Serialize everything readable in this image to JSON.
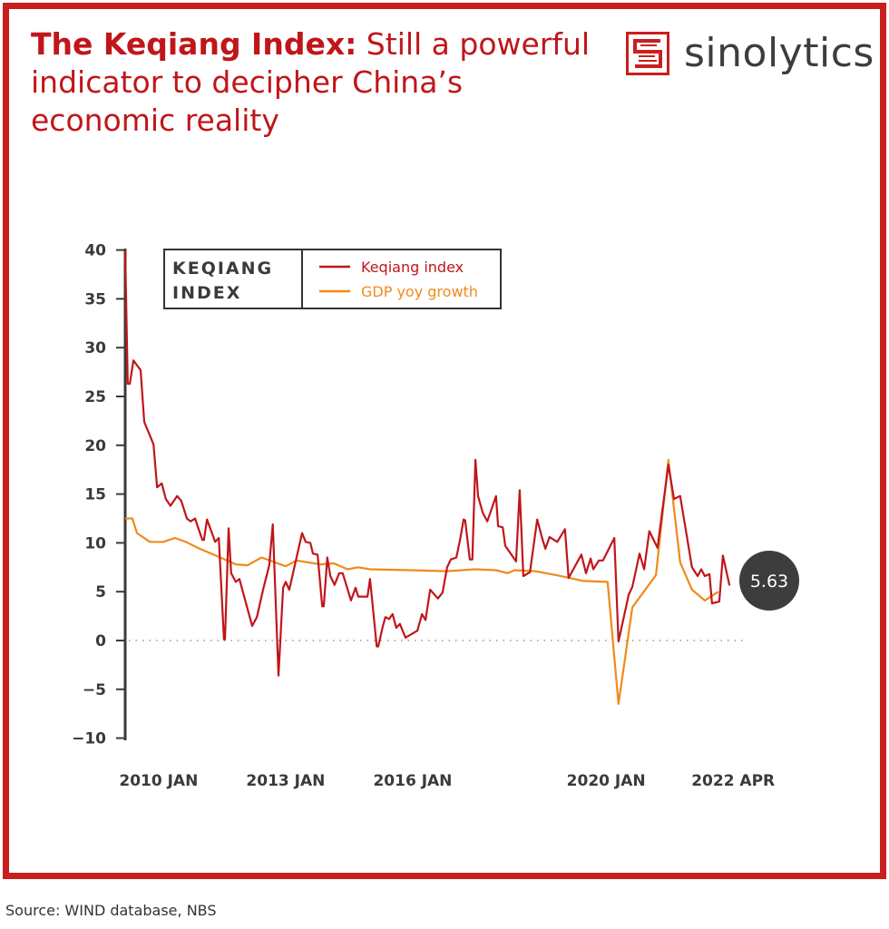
{
  "header": {
    "title_bold": "The Keqiang Index:",
    "title_rest": " Still a powerful indicator to decipher China’s economic reality",
    "brand": "sinolytics"
  },
  "footer": {
    "source": "Source: WIND database, NBS"
  },
  "colors": {
    "frame": "#c8201e",
    "keqiang": "#c0161a",
    "gdp": "#f08a1c",
    "axis": "#3a3a3a",
    "bubble": "#3d3d3d"
  },
  "chart_data": {
    "type": "line",
    "title": "KEQIANG INDEX",
    "title_line1": "KEQIANG",
    "title_line2": "INDEX",
    "xlabel": "",
    "ylabel": "",
    "ylim": [
      -10,
      40
    ],
    "xlim": [
      2010.0,
      2022.25
    ],
    "yticks": [
      40,
      35,
      30,
      25,
      20,
      15,
      10,
      5,
      0,
      -5,
      -10
    ],
    "ytick_labels": [
      "40",
      "35",
      "30",
      "25",
      "20",
      "15",
      "10",
      "5",
      "0",
      "−5",
      "−10"
    ],
    "xticks": [
      {
        "label": "2010 JAN",
        "x": 2010.65
      },
      {
        "label": "2013 JAN",
        "x": 2013.12
      },
      {
        "label": "2016 JAN",
        "x": 2015.59
      },
      {
        "label": "2020 JAN",
        "x": 2019.35
      },
      {
        "label": "2022 APR",
        "x": 2021.82
      }
    ],
    "zero_line": "dotted",
    "legend_position": "top-left",
    "annotation": {
      "label": "5.63",
      "value": 5.63
    },
    "series": [
      {
        "name": "Keqiang index",
        "color": "#c0161a",
        "points": [
          [
            2010.0,
            40
          ],
          [
            2010.05,
            26.3
          ],
          [
            2010.09,
            26.3
          ],
          [
            2010.16,
            28.7
          ],
          [
            2010.23,
            28.2
          ],
          [
            2010.3,
            27.7
          ],
          [
            2010.37,
            22.4
          ],
          [
            2010.55,
            20.1
          ],
          [
            2010.62,
            15.7
          ],
          [
            2010.71,
            16.1
          ],
          [
            2010.79,
            14.5
          ],
          [
            2010.88,
            13.8
          ],
          [
            2011.01,
            14.8
          ],
          [
            2011.09,
            14.3
          ],
          [
            2011.2,
            12.5
          ],
          [
            2011.27,
            12.2
          ],
          [
            2011.36,
            12.5
          ],
          [
            2011.41,
            11.7
          ],
          [
            2011.5,
            10.3
          ],
          [
            2011.53,
            10.3
          ],
          [
            2011.59,
            12.4
          ],
          [
            2011.75,
            10.1
          ],
          [
            2011.82,
            10.5
          ],
          [
            2011.92,
            0.1
          ],
          [
            2011.94,
            0.1
          ],
          [
            2012.01,
            11.5
          ],
          [
            2012.06,
            6.9
          ],
          [
            2012.15,
            6.0
          ],
          [
            2012.22,
            6.3
          ],
          [
            2012.47,
            1.5
          ],
          [
            2012.56,
            2.4
          ],
          [
            2012.68,
            5.2
          ],
          [
            2012.8,
            7.7
          ],
          [
            2012.87,
            11.9
          ],
          [
            2012.98,
            -3.6
          ],
          [
            2013.07,
            5.4
          ],
          [
            2013.12,
            6.0
          ],
          [
            2013.19,
            5.2
          ],
          [
            2013.44,
            11.0
          ],
          [
            2013.51,
            10.1
          ],
          [
            2013.6,
            10.0
          ],
          [
            2013.65,
            8.9
          ],
          [
            2013.74,
            8.8
          ],
          [
            2013.83,
            3.5
          ],
          [
            2013.86,
            3.5
          ],
          [
            2013.93,
            8.5
          ],
          [
            2013.99,
            6.6
          ],
          [
            2014.07,
            5.7
          ],
          [
            2014.16,
            6.9
          ],
          [
            2014.23,
            6.9
          ],
          [
            2014.39,
            4.1
          ],
          [
            2014.48,
            5.4
          ],
          [
            2014.53,
            4.5
          ],
          [
            2014.71,
            4.5
          ],
          [
            2014.76,
            6.3
          ],
          [
            2014.89,
            -0.6
          ],
          [
            2014.92,
            -0.6
          ],
          [
            2015.01,
            1.5
          ],
          [
            2015.06,
            2.4
          ],
          [
            2015.13,
            2.2
          ],
          [
            2015.2,
            2.7
          ],
          [
            2015.27,
            1.3
          ],
          [
            2015.34,
            1.7
          ],
          [
            2015.45,
            0.3
          ],
          [
            2015.68,
            1.0
          ],
          [
            2015.77,
            2.7
          ],
          [
            2015.84,
            2.1
          ],
          [
            2015.93,
            5.2
          ],
          [
            2016.08,
            4.3
          ],
          [
            2016.17,
            4.9
          ],
          [
            2016.26,
            7.5
          ],
          [
            2016.33,
            8.3
          ],
          [
            2016.44,
            8.5
          ],
          [
            2016.51,
            10.3
          ],
          [
            2016.58,
            12.4
          ],
          [
            2016.61,
            12.3
          ],
          [
            2016.7,
            8.3
          ],
          [
            2016.75,
            8.3
          ],
          [
            2016.81,
            18.5
          ],
          [
            2016.86,
            14.8
          ],
          [
            2016.95,
            13.1
          ],
          [
            2017.04,
            12.2
          ],
          [
            2017.21,
            14.8
          ],
          [
            2017.25,
            11.7
          ],
          [
            2017.34,
            11.6
          ],
          [
            2017.39,
            9.7
          ],
          [
            2017.6,
            8.1
          ],
          [
            2017.67,
            15.4
          ],
          [
            2017.74,
            6.6
          ],
          [
            2017.87,
            7.0
          ],
          [
            2018.01,
            12.4
          ],
          [
            2018.1,
            10.6
          ],
          [
            2018.17,
            9.4
          ],
          [
            2018.25,
            10.6
          ],
          [
            2018.4,
            10.1
          ],
          [
            2018.55,
            11.4
          ],
          [
            2018.62,
            6.4
          ],
          [
            2018.87,
            8.8
          ],
          [
            2018.96,
            6.9
          ],
          [
            2019.05,
            8.4
          ],
          [
            2019.1,
            7.3
          ],
          [
            2019.21,
            8.2
          ],
          [
            2019.29,
            8.2
          ],
          [
            2019.51,
            10.5
          ],
          [
            2019.59,
            -0.1
          ],
          [
            2019.79,
            4.7
          ],
          [
            2019.86,
            5.5
          ],
          [
            2020.0,
            8.9
          ],
          [
            2020.09,
            7.3
          ],
          [
            2020.19,
            11.2
          ],
          [
            2020.35,
            9.5
          ],
          [
            2020.56,
            18.0
          ],
          [
            2020.67,
            14.5
          ],
          [
            2020.79,
            14.8
          ],
          [
            2021.02,
            7.5
          ],
          [
            2021.13,
            6.6
          ],
          [
            2021.2,
            7.3
          ],
          [
            2021.27,
            6.6
          ],
          [
            2021.36,
            6.8
          ],
          [
            2021.41,
            3.8
          ],
          [
            2021.55,
            4.0
          ],
          [
            2021.62,
            8.7
          ],
          [
            2021.75,
            5.63
          ]
        ]
      },
      {
        "name": "GDP yoy growth",
        "color": "#f08a1c",
        "points": [
          [
            2010.0,
            12.5
          ],
          [
            2010.14,
            12.5
          ],
          [
            2010.23,
            11.0
          ],
          [
            2010.48,
            10.1
          ],
          [
            2010.74,
            10.1
          ],
          [
            2010.97,
            10.5
          ],
          [
            2011.18,
            10.1
          ],
          [
            2011.45,
            9.4
          ],
          [
            2011.85,
            8.5
          ],
          [
            2012.15,
            7.8
          ],
          [
            2012.38,
            7.7
          ],
          [
            2012.65,
            8.5
          ],
          [
            2012.86,
            8.1
          ],
          [
            2013.12,
            7.6
          ],
          [
            2013.33,
            8.2
          ],
          [
            2013.79,
            7.8
          ],
          [
            2014.06,
            7.9
          ],
          [
            2014.32,
            7.3
          ],
          [
            2014.53,
            7.5
          ],
          [
            2014.76,
            7.3
          ],
          [
            2015.56,
            7.2
          ],
          [
            2016.26,
            7.1
          ],
          [
            2016.79,
            7.3
          ],
          [
            2017.21,
            7.2
          ],
          [
            2017.44,
            6.9
          ],
          [
            2017.57,
            7.2
          ],
          [
            2017.97,
            7.1
          ],
          [
            2018.38,
            6.7
          ],
          [
            2018.64,
            6.4
          ],
          [
            2018.91,
            6.1
          ],
          [
            2019.38,
            6.0
          ],
          [
            2019.59,
            -6.5
          ],
          [
            2019.86,
            3.4
          ],
          [
            2020.32,
            6.7
          ],
          [
            2020.56,
            18.5
          ],
          [
            2020.79,
            8.0
          ],
          [
            2021.02,
            5.2
          ],
          [
            2021.27,
            4.1
          ],
          [
            2021.53,
            5.0
          ]
        ]
      }
    ]
  }
}
